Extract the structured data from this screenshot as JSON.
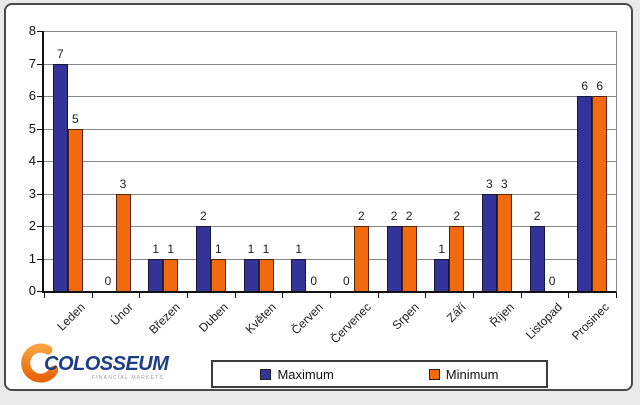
{
  "chart_data": {
    "type": "bar",
    "title": "",
    "xlabel": "",
    "ylabel": "",
    "categories": [
      "Leden",
      "Únor",
      "Březen",
      "Duben",
      "Květen",
      "Červen",
      "Červenec",
      "Srpen",
      "Září",
      "Říjen",
      "Listopad",
      "Prosinec"
    ],
    "series": [
      {
        "name": "Maximum",
        "color": "#333399",
        "values": [
          7,
          0,
          1,
          2,
          1,
          1,
          0,
          2,
          1,
          3,
          2,
          6
        ]
      },
      {
        "name": "Minimum",
        "color": "#F26A0D",
        "values": [
          5,
          3,
          1,
          1,
          1,
          0,
          2,
          2,
          2,
          3,
          0,
          6
        ]
      }
    ],
    "ylim": [
      0,
      8
    ],
    "ytick_step": 1,
    "grid": true,
    "data_labels": true,
    "legend_position": "bottom",
    "x_label_rotation_deg": -45
  },
  "legend": {
    "maximum_label": "Maximum",
    "minimum_label": "Minimum"
  },
  "logo": {
    "name": "COLOSSEUM",
    "subtitle": "FINANCIAL MARKETS",
    "text_color": "#1d3e86",
    "swoosh_color_top": "#f7a23d",
    "swoosh_color_bottom": "#e86407"
  },
  "colors": {
    "maximum_bar": "#333399",
    "minimum_bar": "#F26A0D",
    "gridline": "#878787",
    "axis": "#111111",
    "frame_border": "#4a4a4a",
    "background": "#ffffff"
  }
}
